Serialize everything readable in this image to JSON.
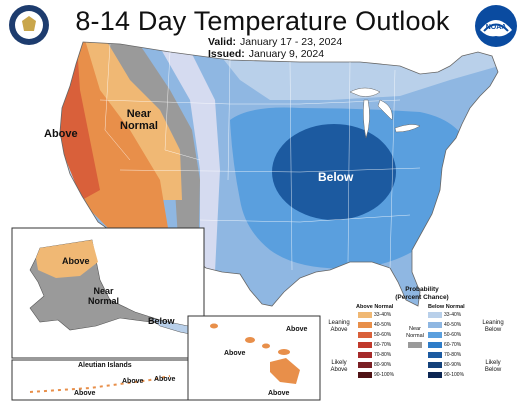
{
  "title": "8-14 Day Temperature Outlook",
  "valid_label": "Valid:",
  "valid_value": "January 17 - 23, 2024",
  "issued_label": "Issued:",
  "issued_value": "January 9, 2024",
  "map_labels": {
    "above_west": "Above",
    "near_normal_west": "Near\nNormal",
    "below_central": "Below",
    "alaska_above": "Above",
    "alaska_near_normal": "Near\nNormal",
    "alaska_below": "Below",
    "aleutian_title": "Aleutian Islands",
    "aleutian_above_1": "Above",
    "aleutian_above_2": "Above",
    "aleutian_above_3": "Above",
    "hawaii_above_1": "Above",
    "hawaii_above_2": "Above",
    "hawaii_above_3": "Above"
  },
  "legend": {
    "title": "Probability\n(Percent Chance)",
    "above_header": "Above Normal",
    "below_header": "Below Normal",
    "near_label": "Near\nNormal",
    "leaning_above": "Leaning\nAbove",
    "likely_above": "Likely\nAbove",
    "leaning_below": "Leaning\nBelow",
    "likely_below": "Likely\nBelow",
    "above_bins": [
      "33-40%",
      "40-50%",
      "50-60%",
      "60-70%",
      "70-80%",
      "80-90%",
      "90-100%"
    ],
    "below_bins": [
      "33-40%",
      "40-50%",
      "50-60%",
      "60-70%",
      "70-80%",
      "80-90%",
      "90-100%"
    ],
    "above_colors": [
      "#f0b874",
      "#e88f4a",
      "#d9603a",
      "#c0392b",
      "#a52a2a",
      "#7a1f24",
      "#4f1215"
    ],
    "below_colors": [
      "#b9d0ea",
      "#8fb7e2",
      "#5a9fde",
      "#2e7cc8",
      "#1c5aa0",
      "#14417a",
      "#0c2653"
    ],
    "near_color": "#9a9a9a"
  },
  "colors": {
    "above_33": "#f0b874",
    "above_40": "#e88f4a",
    "above_50": "#d9603a",
    "near": "#9a9a9a",
    "below_33": "#b9d0ea",
    "below_40": "#8fb7e2",
    "below_50": "#5a9fde",
    "below_60": "#2e7cc8",
    "below_70": "#1c5aa0"
  }
}
